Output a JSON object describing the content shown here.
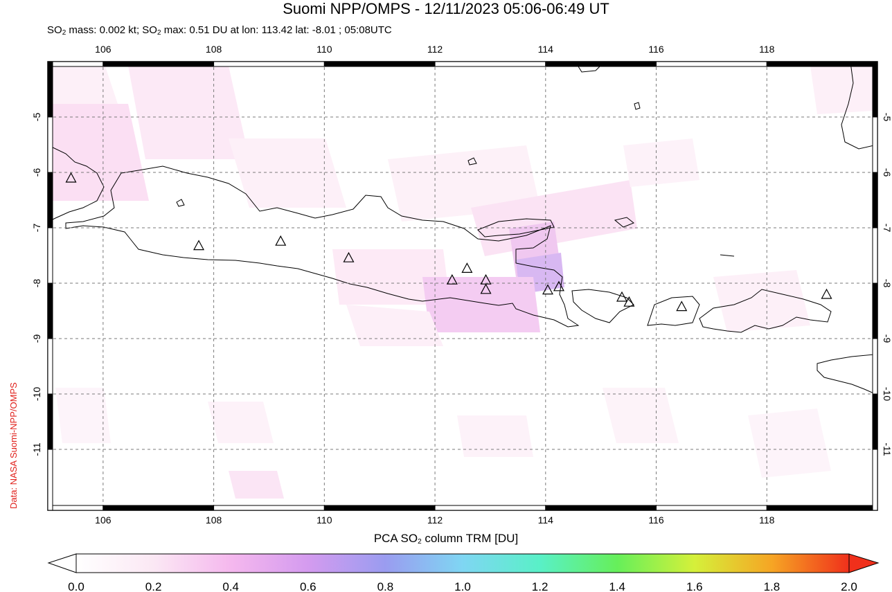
{
  "title": "Suomi NPP/OMPS - 12/11/2023 05:06-06:49 UT",
  "subtitle": {
    "so2_mass_prefix": "SO",
    "so2_sub": "2",
    "so2_mass_text": " mass: 0.002 kt; SO",
    "so2_max_text": " max: 0.51 DU at lon: 113.42 lat: -8.01 ; 05:08UTC"
  },
  "credit": "Data: NASA Suomi-NPP/OMPS",
  "colorbar": {
    "title_prefix": "PCA SO",
    "title_sub": "2",
    "title_suffix": " column TRM [DU]",
    "ticks": [
      "0.0",
      "0.2",
      "0.4",
      "0.6",
      "0.8",
      "1.0",
      "1.2",
      "1.4",
      "1.6",
      "1.8",
      "2.0"
    ],
    "colors": [
      "#ffffff",
      "#fbe8f4",
      "#f5b8ee",
      "#d49bef",
      "#9a9cf0",
      "#7fd6f3",
      "#59f0c7",
      "#66ef5a",
      "#d5f03a",
      "#f6a524",
      "#f0301b"
    ]
  },
  "map": {
    "lon_range": [
      105,
      120
    ],
    "lat_range": [
      -12.1,
      -4.0
    ],
    "lon_ticks": [
      "106",
      "108",
      "110",
      "112",
      "114",
      "116",
      "118"
    ],
    "lat_ticks": [
      "-5",
      "-6",
      "-7",
      "-8",
      "-9",
      "-10",
      "-11"
    ],
    "grid": "dashed",
    "volcanoes": [
      {
        "lon": 105.42,
        "lat": -6.1
      },
      {
        "lon": 107.73,
        "lat": -7.32
      },
      {
        "lon": 109.21,
        "lat": -7.24
      },
      {
        "lon": 110.44,
        "lat": -7.54
      },
      {
        "lon": 112.31,
        "lat": -7.94
      },
      {
        "lon": 112.58,
        "lat": -7.73
      },
      {
        "lon": 112.92,
        "lat": -7.94
      },
      {
        "lon": 112.92,
        "lat": -8.11
      },
      {
        "lon": 114.04,
        "lat": -8.12
      },
      {
        "lon": 114.24,
        "lat": -8.06
      },
      {
        "lon": 115.38,
        "lat": -8.25
      },
      {
        "lon": 115.51,
        "lat": -8.34
      },
      {
        "lon": 116.46,
        "lat": -8.42
      },
      {
        "lon": 119.08,
        "lat": -8.2
      }
    ]
  }
}
